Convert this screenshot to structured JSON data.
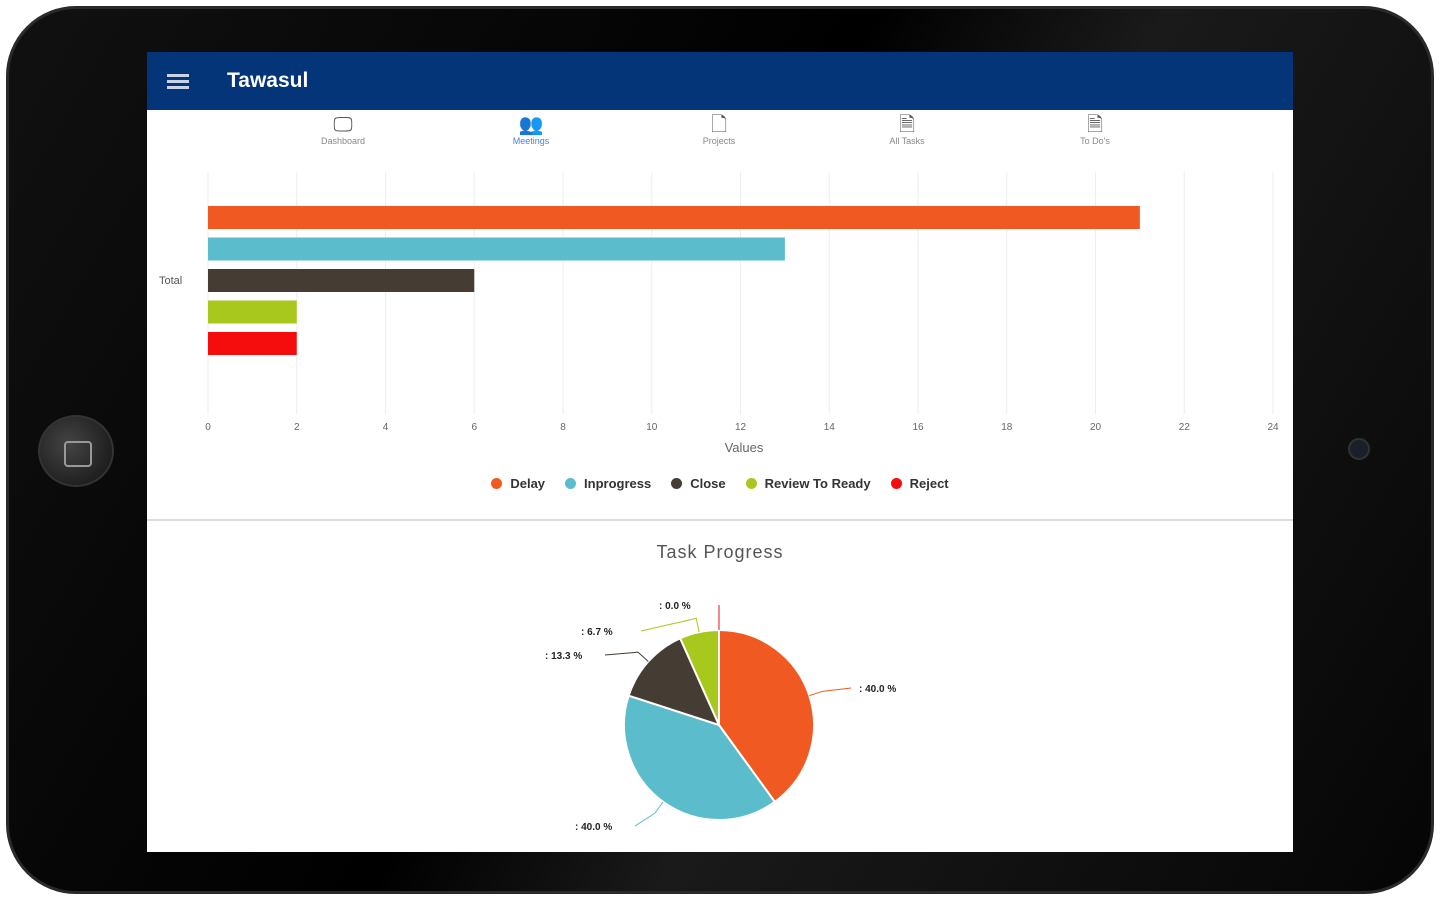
{
  "app": {
    "title": "Tawasul"
  },
  "tabs": [
    {
      "label": "Dashboard",
      "icon": "monitor-icon"
    },
    {
      "label": "Meetings",
      "icon": "users-icon",
      "active": true
    },
    {
      "label": "Projects",
      "icon": "document-icon"
    },
    {
      "label": "All Tasks",
      "icon": "document-icon"
    },
    {
      "label": "To Do's",
      "icon": "document-icon"
    }
  ],
  "chart_data": [
    {
      "type": "bar",
      "orientation": "horizontal",
      "categories": [
        "Total"
      ],
      "series": [
        {
          "name": "Delay",
          "values": [
            21
          ],
          "color": "#f05a22"
        },
        {
          "name": "Inprogress",
          "values": [
            13
          ],
          "color": "#5bbccc"
        },
        {
          "name": "Close",
          "values": [
            6
          ],
          "color": "#453c33"
        },
        {
          "name": "Review To Ready",
          "values": [
            2
          ],
          "color": "#a9c81e"
        },
        {
          "name": "Reject",
          "values": [
            2
          ],
          "color": "#f50d0d"
        }
      ],
      "xlabel": "Values",
      "xlim": [
        0,
        24
      ],
      "xticks": [
        0,
        2,
        4,
        6,
        8,
        10,
        12,
        14,
        16,
        18,
        20,
        22,
        24
      ],
      "legend": "bottom"
    },
    {
      "type": "pie",
      "title": "Task Progress",
      "slices": [
        {
          "name": "Delay",
          "value": 40.0,
          "label": ": 40.0 %",
          "color": "#f05a22"
        },
        {
          "name": "Inprogress",
          "value": 40.0,
          "label": ": 40.0 %",
          "color": "#5bbccc"
        },
        {
          "name": "Close",
          "value": 13.3,
          "label": ": 13.3 %",
          "color": "#453c33"
        },
        {
          "name": "Review To Ready",
          "value": 6.7,
          "label": ": 6.7 %",
          "color": "#a9c81e"
        },
        {
          "name": "Reject",
          "value": 0.0,
          "label": ": 0.0 %",
          "color": "#f50d0d"
        }
      ]
    }
  ]
}
